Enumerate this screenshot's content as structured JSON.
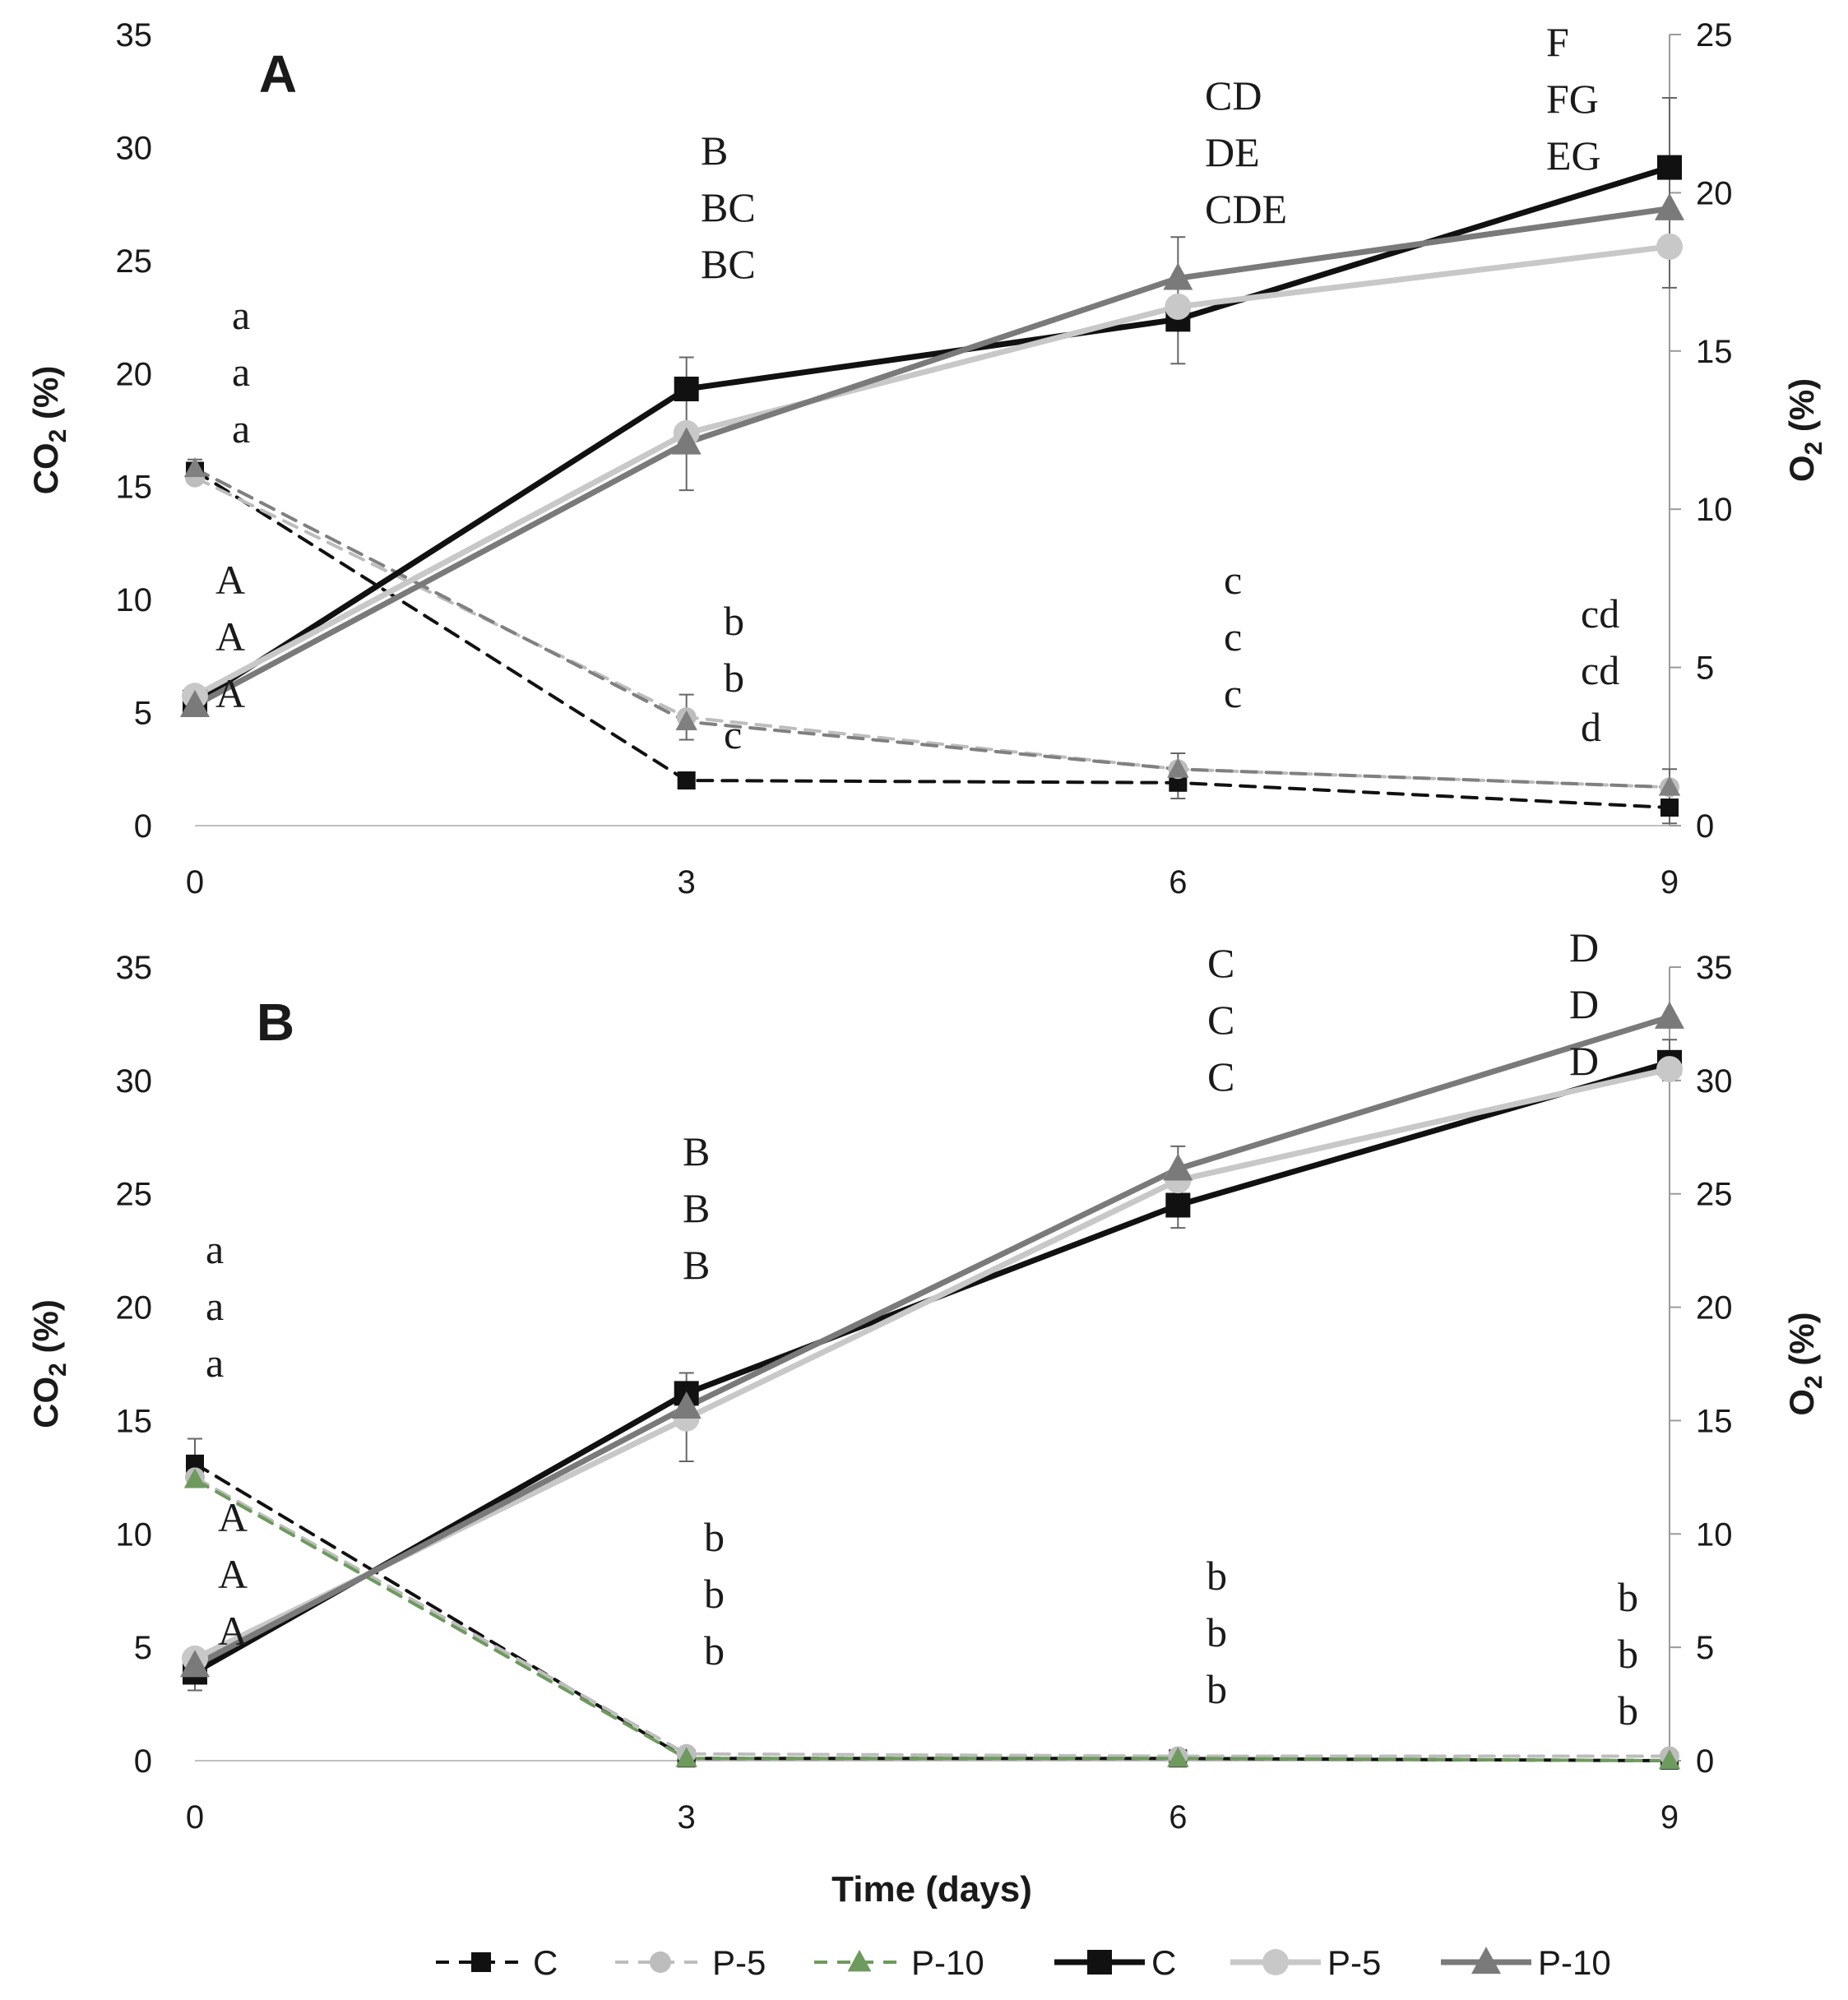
{
  "chart_data": [
    {
      "type": "line",
      "panel_label": "A",
      "x": [
        0,
        3,
        6,
        9
      ],
      "xticks": [
        "0",
        "3",
        "6",
        "9"
      ],
      "ylabel_left": "CO",
      "ylabel_left_sub": "2",
      "ylabel_right": "O",
      "ylabel_right_sub": "2",
      "ylabel_unit": " (%)",
      "ylim_left": [
        0,
        35
      ],
      "yticks_left": [
        "0",
        "5",
        "10",
        "15",
        "20",
        "25",
        "30",
        "35"
      ],
      "ylim_right": [
        0,
        25
      ],
      "yticks_right": [
        "0",
        "5",
        "10",
        "15",
        "20",
        "25"
      ],
      "series": [
        {
          "name": "C",
          "axis": "left",
          "style": "dashed",
          "marker": "square",
          "color": "#111111",
          "values": [
            15.7,
            2.0,
            1.9,
            0.8
          ]
        },
        {
          "name": "P-5",
          "axis": "left",
          "style": "dashed",
          "marker": "circle",
          "color": "#bdbdbd",
          "values": [
            15.4,
            4.8,
            2.5,
            1.7
          ]
        },
        {
          "name": "P-10",
          "axis": "left",
          "style": "dashed",
          "marker": "triangle",
          "color": "#808080",
          "values": [
            15.8,
            4.6,
            2.5,
            1.7
          ]
        },
        {
          "name": "C",
          "axis": "right",
          "style": "solid",
          "marker": "square",
          "color": "#111111",
          "values": [
            3.9,
            13.8,
            16.0,
            20.8
          ]
        },
        {
          "name": "P-5",
          "axis": "right",
          "style": "solid",
          "marker": "circle",
          "color": "#c8c8c8",
          "values": [
            4.1,
            12.4,
            16.4,
            18.3
          ]
        },
        {
          "name": "P-10",
          "axis": "right",
          "style": "solid",
          "marker": "triangle",
          "color": "#7a7a7a",
          "values": [
            3.8,
            12.1,
            17.3,
            19.5
          ]
        }
      ],
      "error_bars_left": [
        {
          "x": 0,
          "low": 15.2,
          "high": 16.2
        },
        {
          "x": 3,
          "low": 3.8,
          "high": 5.8
        },
        {
          "x": 6,
          "low": 1.2,
          "high": 3.2
        },
        {
          "x": 9,
          "low": 0.1,
          "high": 2.5
        }
      ],
      "error_bars_right": [
        {
          "x": 3,
          "low": 10.6,
          "high": 14.8
        },
        {
          "x": 6,
          "low": 14.6,
          "high": 18.6
        },
        {
          "x": 9,
          "low": 17.0,
          "high": 23.0
        }
      ],
      "annotations": [
        {
          "x": 0,
          "pos": "above-dashed",
          "letters": [
            "a",
            "a",
            "a"
          ]
        },
        {
          "x": 0,
          "pos": "above-solid",
          "letters": [
            "A",
            "A",
            "A"
          ]
        },
        {
          "x": 3,
          "pos": "above-solid",
          "letters": [
            "B",
            "BC",
            "BC"
          ]
        },
        {
          "x": 3,
          "pos": "above-dashed",
          "letters": [
            "b",
            "b",
            "c"
          ]
        },
        {
          "x": 6,
          "pos": "above-solid",
          "letters": [
            "CD",
            "DE",
            "CDE"
          ]
        },
        {
          "x": 6,
          "pos": "above-dashed",
          "letters": [
            "c",
            "c",
            "c"
          ]
        },
        {
          "x": 9,
          "pos": "above-solid",
          "letters": [
            "F",
            "FG",
            "EG"
          ]
        },
        {
          "x": 9,
          "pos": "above-dashed",
          "letters": [
            "cd",
            "cd",
            "d"
          ]
        }
      ]
    },
    {
      "type": "line",
      "panel_label": "B",
      "x": [
        0,
        3,
        6,
        9
      ],
      "xticks": [
        "0",
        "3",
        "6",
        "9"
      ],
      "xlabel": "Time (days)",
      "ylabel_left": "CO",
      "ylabel_left_sub": "2",
      "ylabel_right": "O",
      "ylabel_right_sub": "2",
      "ylabel_unit": " (%)",
      "ylim_left": [
        0,
        35
      ],
      "yticks_left": [
        "0",
        "5",
        "10",
        "15",
        "20",
        "25",
        "30",
        "35"
      ],
      "ylim_right": [
        0,
        35
      ],
      "yticks_right": [
        "0",
        "5",
        "10",
        "15",
        "20",
        "25",
        "30",
        "35"
      ],
      "series": [
        {
          "name": "C",
          "axis": "left",
          "style": "dashed",
          "marker": "square",
          "color": "#111111",
          "values": [
            13.1,
            0.1,
            0.1,
            0.0
          ]
        },
        {
          "name": "P-5",
          "axis": "left",
          "style": "dashed",
          "marker": "circle",
          "color": "#bdbdbd",
          "values": [
            12.5,
            0.3,
            0.2,
            0.2
          ]
        },
        {
          "name": "P-10",
          "axis": "left",
          "style": "dashed",
          "marker": "triangle",
          "color": "#6e9a5e",
          "values": [
            12.4,
            0.1,
            0.1,
            0.0
          ]
        },
        {
          "name": "C",
          "axis": "right",
          "style": "solid",
          "marker": "square",
          "color": "#111111",
          "values": [
            3.9,
            16.2,
            24.5,
            30.8
          ]
        },
        {
          "name": "P-5",
          "axis": "right",
          "style": "solid",
          "marker": "circle",
          "color": "#c8c8c8",
          "values": [
            4.5,
            15.1,
            25.6,
            30.5
          ]
        },
        {
          "name": "P-10",
          "axis": "right",
          "style": "solid",
          "marker": "triangle",
          "color": "#7a7a7a",
          "values": [
            4.2,
            15.6,
            26.1,
            32.8
          ]
        }
      ],
      "error_bars_left": [
        {
          "x": 0,
          "low": 12.2,
          "high": 14.2
        }
      ],
      "error_bars_right": [
        {
          "x": 0,
          "low": 3.1,
          "high": 4.7
        },
        {
          "x": 3,
          "low": 13.2,
          "high": 17.1
        },
        {
          "x": 6,
          "low": 23.5,
          "high": 27.1
        },
        {
          "x": 9,
          "low": 30.0,
          "high": 31.8
        }
      ],
      "annotations": [
        {
          "x": 0,
          "pos": "above-dashed",
          "letters": [
            "a",
            "a",
            "a"
          ]
        },
        {
          "x": 0,
          "pos": "above-solid",
          "letters": [
            "A",
            "A",
            "A"
          ]
        },
        {
          "x": 3,
          "pos": "above-solid",
          "letters": [
            "B",
            "B",
            "B"
          ]
        },
        {
          "x": 3,
          "pos": "above-dashed",
          "letters": [
            "b",
            "b",
            "b"
          ]
        },
        {
          "x": 6,
          "pos": "above-solid",
          "letters": [
            "C",
            "C",
            "C"
          ]
        },
        {
          "x": 6,
          "pos": "above-dashed",
          "letters": [
            "b",
            "b",
            "b"
          ]
        },
        {
          "x": 9,
          "pos": "above-solid",
          "letters": [
            "D",
            "D",
            "D"
          ]
        },
        {
          "x": 9,
          "pos": "above-dashed",
          "letters": [
            "b",
            "b",
            "b"
          ]
        }
      ]
    }
  ],
  "legend": {
    "placement": "bottom",
    "entries": [
      {
        "label": "C",
        "style": "dashed",
        "marker": "square",
        "color": "#111111"
      },
      {
        "label": "P-5",
        "style": "dashed",
        "marker": "circle",
        "color": "#bdbdbd"
      },
      {
        "label": "P-10",
        "style": "dashed",
        "marker": "triangle",
        "color": "#6e9a5e"
      },
      {
        "label": "C",
        "style": "solid",
        "marker": "square",
        "color": "#111111"
      },
      {
        "label": "P-5",
        "style": "solid",
        "marker": "circle",
        "color": "#c8c8c8"
      },
      {
        "label": "P-10",
        "style": "solid",
        "marker": "triangle",
        "color": "#7a7a7a"
      }
    ]
  }
}
